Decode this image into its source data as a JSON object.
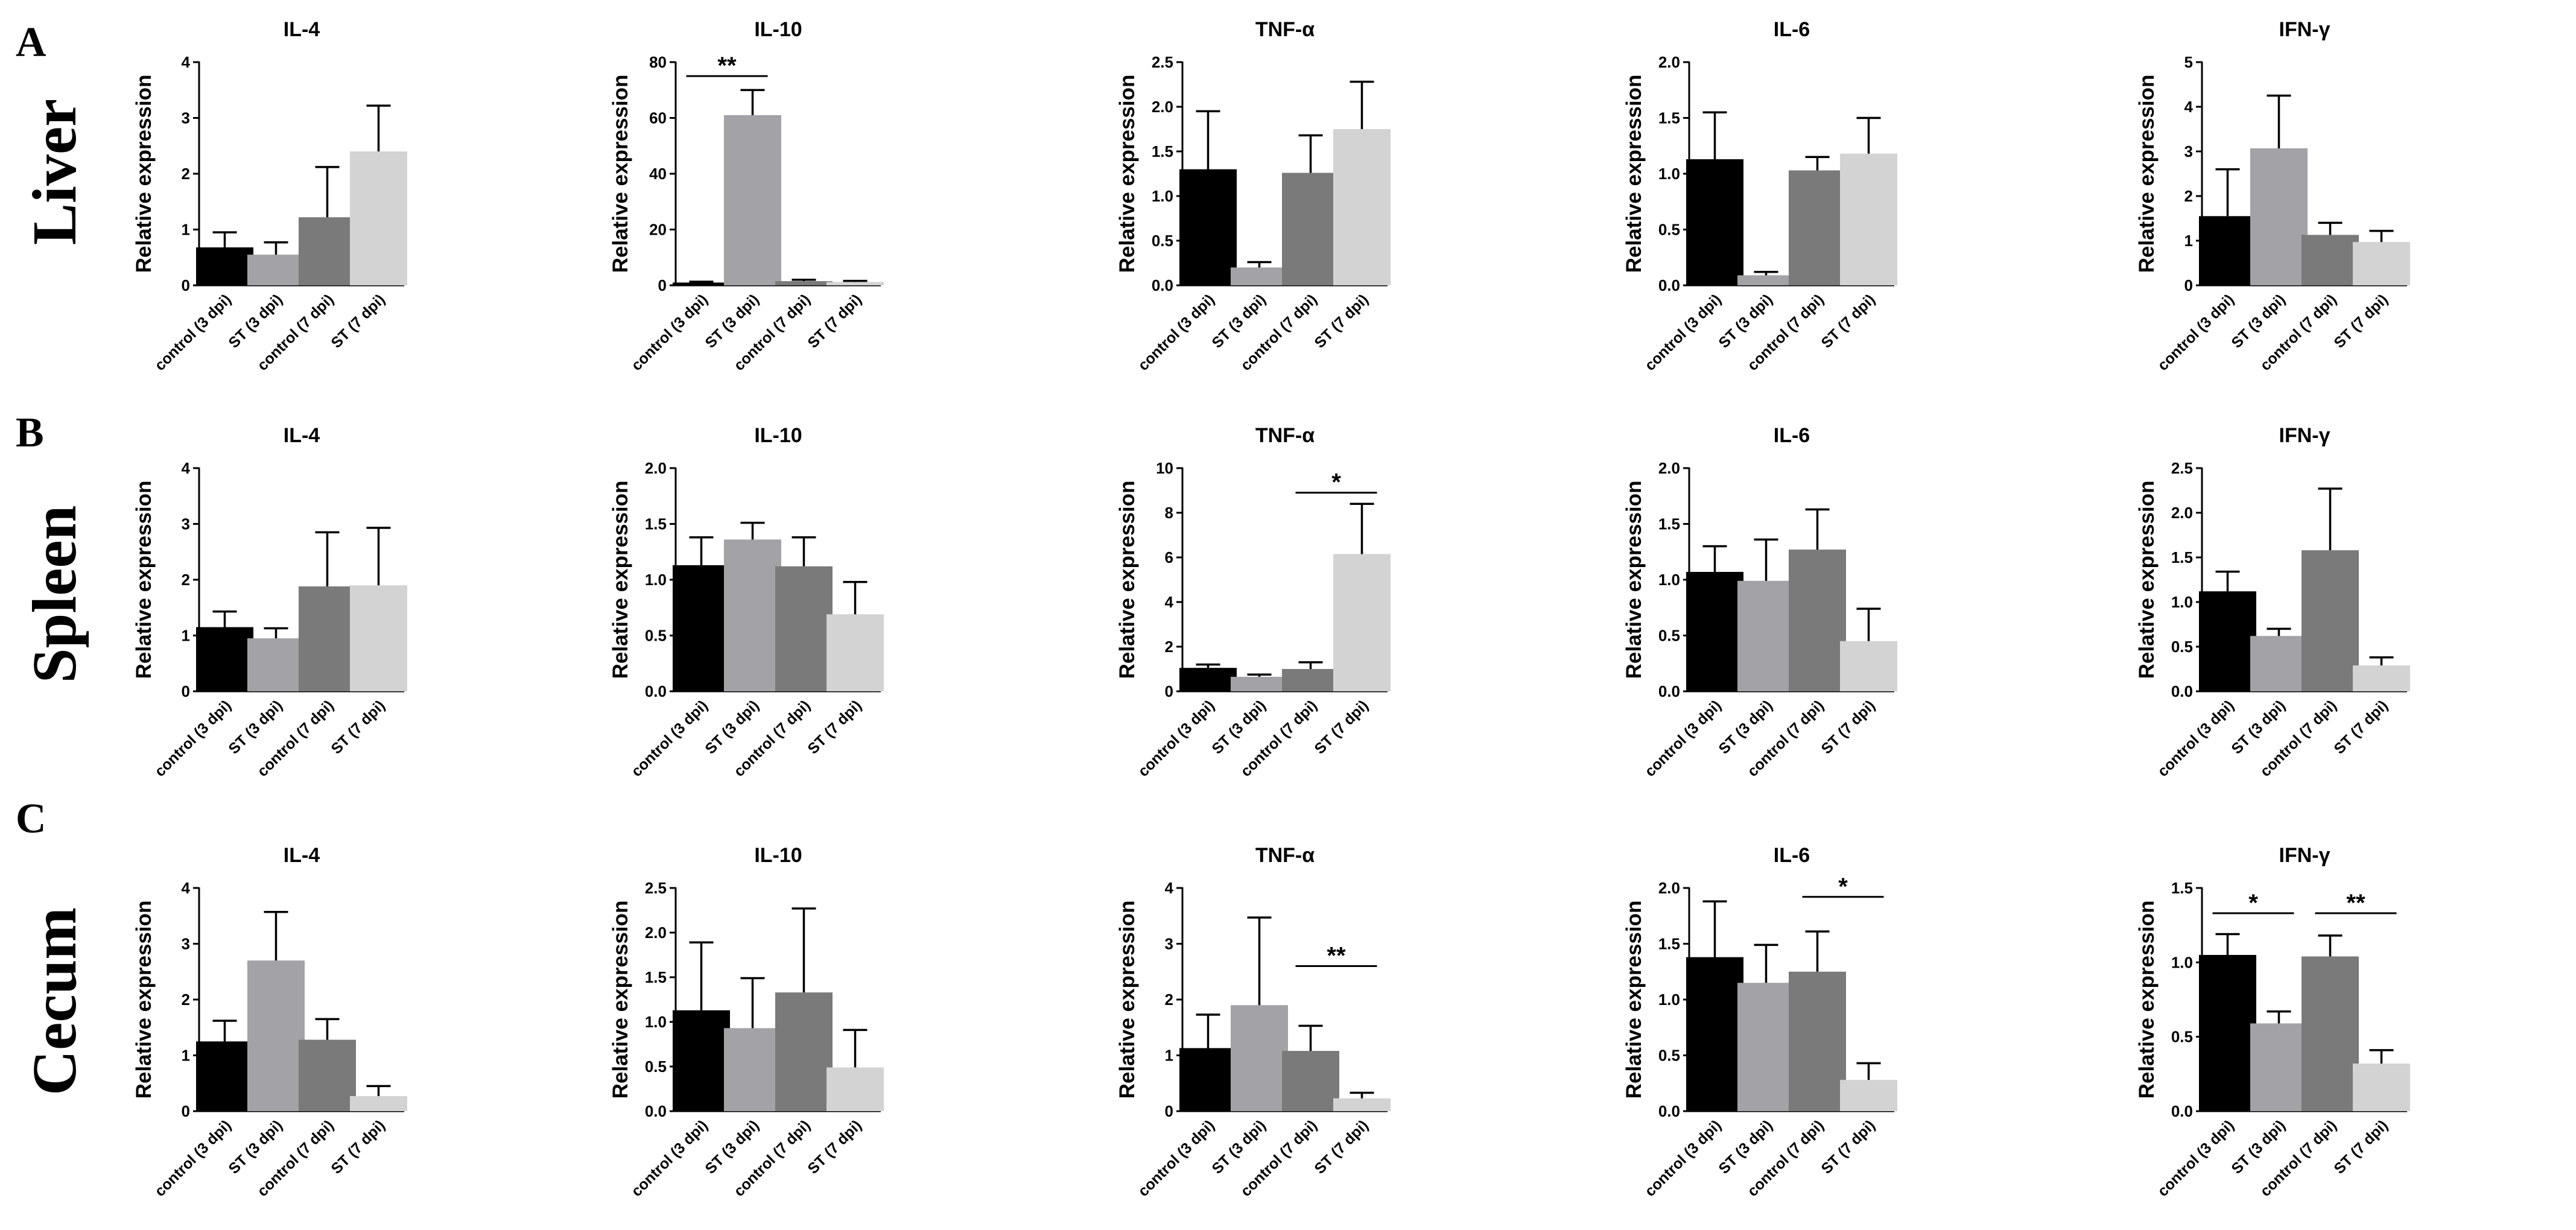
{
  "chart_data": {
    "type": "bar",
    "ylabel": "Relative expression",
    "categories": [
      "control (3 dpi)",
      "ST (3 dpi)",
      "control (7 dpi)",
      "ST (7 dpi)"
    ],
    "bar_colors": [
      "#000000",
      "#a2a2a7",
      "#7a7a7a",
      "#d3d3d3"
    ],
    "rows": [
      {
        "letter": "A",
        "label": "Liver",
        "panels": [
          {
            "title": "IL-4",
            "ylim": [
              0,
              4
            ],
            "ticks": [
              "0",
              "1",
              "2",
              "3",
              "4"
            ],
            "values": [
              0.68,
              0.55,
              1.22,
              2.4
            ],
            "errors": [
              0.27,
              0.22,
              0.9,
              0.82
            ],
            "significance": []
          },
          {
            "title": "IL-10",
            "ylim": [
              0,
              80
            ],
            "ticks": [
              "0",
              "20",
              "40",
              "60",
              "80"
            ],
            "values": [
              1.0,
              61.0,
              1.5,
              1.2
            ],
            "errors": [
              0.3,
              9.0,
              0.5,
              0.4
            ],
            "significance": [
              {
                "from": 0,
                "to": 1,
                "y": 75,
                "label": "**"
              }
            ]
          },
          {
            "title": "TNF-α",
            "ylim": [
              0,
              2.5
            ],
            "ticks": [
              "0.0",
              "0.5",
              "1.0",
              "1.5",
              "2.0",
              "2.5"
            ],
            "values": [
              1.3,
              0.2,
              1.26,
              1.75
            ],
            "errors": [
              0.65,
              0.06,
              0.42,
              0.53
            ],
            "significance": []
          },
          {
            "title": "IL-6",
            "ylim": [
              0,
              2.0
            ],
            "ticks": [
              "0.0",
              "0.5",
              "1.0",
              "1.5",
              "2.0"
            ],
            "values": [
              1.13,
              0.09,
              1.03,
              1.18
            ],
            "errors": [
              0.42,
              0.03,
              0.12,
              0.32
            ],
            "significance": []
          },
          {
            "title": "IFN-γ",
            "ylim": [
              0,
              5
            ],
            "ticks": [
              "0",
              "1",
              "2",
              "3",
              "4",
              "5"
            ],
            "values": [
              1.55,
              3.07,
              1.13,
              0.97
            ],
            "errors": [
              1.05,
              1.18,
              0.27,
              0.25
            ],
            "significance": []
          }
        ]
      },
      {
        "letter": "B",
        "label": "Spleen",
        "panels": [
          {
            "title": "IL-4",
            "ylim": [
              0,
              4
            ],
            "ticks": [
              "0",
              "1",
              "2",
              "3",
              "4"
            ],
            "values": [
              1.15,
              0.95,
              1.88,
              1.9
            ],
            "errors": [
              0.28,
              0.18,
              0.97,
              1.03
            ],
            "significance": []
          },
          {
            "title": "IL-10",
            "ylim": [
              0,
              2.0
            ],
            "ticks": [
              "0.0",
              "0.5",
              "1.0",
              "1.5",
              "2.0"
            ],
            "values": [
              1.13,
              1.36,
              1.12,
              0.69
            ],
            "errors": [
              0.25,
              0.15,
              0.26,
              0.29
            ],
            "significance": []
          },
          {
            "title": "TNF-α",
            "ylim": [
              0,
              10
            ],
            "ticks": [
              "0",
              "2",
              "4",
              "6",
              "8",
              "10"
            ],
            "values": [
              1.05,
              0.65,
              1.0,
              6.15
            ],
            "errors": [
              0.15,
              0.1,
              0.3,
              2.25
            ],
            "significance": [
              {
                "from": 2,
                "to": 3,
                "y": 8.9,
                "label": "*"
              }
            ]
          },
          {
            "title": "IL-6",
            "ylim": [
              0,
              2.0
            ],
            "ticks": [
              "0.0",
              "0.5",
              "1.0",
              "1.5",
              "2.0"
            ],
            "values": [
              1.07,
              0.99,
              1.27,
              0.45
            ],
            "errors": [
              0.23,
              0.37,
              0.36,
              0.29
            ],
            "significance": []
          },
          {
            "title": "IFN-γ",
            "ylim": [
              0,
              2.5
            ],
            "ticks": [
              "0.0",
              "0.5",
              "1.0",
              "1.5",
              "2.0",
              "2.5"
            ],
            "values": [
              1.12,
              0.62,
              1.58,
              0.29
            ],
            "errors": [
              0.22,
              0.08,
              0.69,
              0.09
            ],
            "significance": []
          }
        ]
      },
      {
        "letter": "C",
        "label": "Cecum",
        "panels": [
          {
            "title": "IL-4",
            "ylim": [
              0,
              4
            ],
            "ticks": [
              "0",
              "1",
              "2",
              "3",
              "4"
            ],
            "values": [
              1.25,
              2.7,
              1.28,
              0.27
            ],
            "errors": [
              0.37,
              0.87,
              0.37,
              0.18
            ],
            "significance": []
          },
          {
            "title": "IL-10",
            "ylim": [
              0,
              2.5
            ],
            "ticks": [
              "0.0",
              "0.5",
              "1.0",
              "1.5",
              "2.0",
              "2.5"
            ],
            "values": [
              1.13,
              0.93,
              1.33,
              0.49
            ],
            "errors": [
              0.76,
              0.56,
              0.94,
              0.42
            ],
            "significance": []
          },
          {
            "title": "TNF-α",
            "ylim": [
              0,
              4
            ],
            "ticks": [
              "0",
              "1",
              "2",
              "3",
              "4"
            ],
            "values": [
              1.13,
              1.9,
              1.08,
              0.23
            ],
            "errors": [
              0.6,
              1.57,
              0.45,
              0.1
            ],
            "significance": [
              {
                "from": 2,
                "to": 3,
                "y": 2.6,
                "label": "**"
              }
            ]
          },
          {
            "title": "IL-6",
            "ylim": [
              0,
              2.0
            ],
            "ticks": [
              "0.0",
              "0.5",
              "1.0",
              "1.5",
              "2.0"
            ],
            "values": [
              1.38,
              1.15,
              1.25,
              0.28
            ],
            "errors": [
              0.5,
              0.34,
              0.36,
              0.15
            ],
            "significance": [
              {
                "from": 2,
                "to": 3,
                "y": 1.92,
                "label": "*"
              }
            ]
          },
          {
            "title": "IFN-γ",
            "ylim": [
              0,
              1.5
            ],
            "ticks": [
              "0.0",
              "0.5",
              "1.0",
              "1.5"
            ],
            "values": [
              1.05,
              0.59,
              1.04,
              0.32
            ],
            "errors": [
              0.14,
              0.08,
              0.14,
              0.09
            ],
            "significance": [
              {
                "from": 0,
                "to": 1,
                "y": 1.33,
                "label": "*"
              },
              {
                "from": 2,
                "to": 3,
                "y": 1.33,
                "label": "**"
              }
            ]
          }
        ]
      }
    ]
  }
}
